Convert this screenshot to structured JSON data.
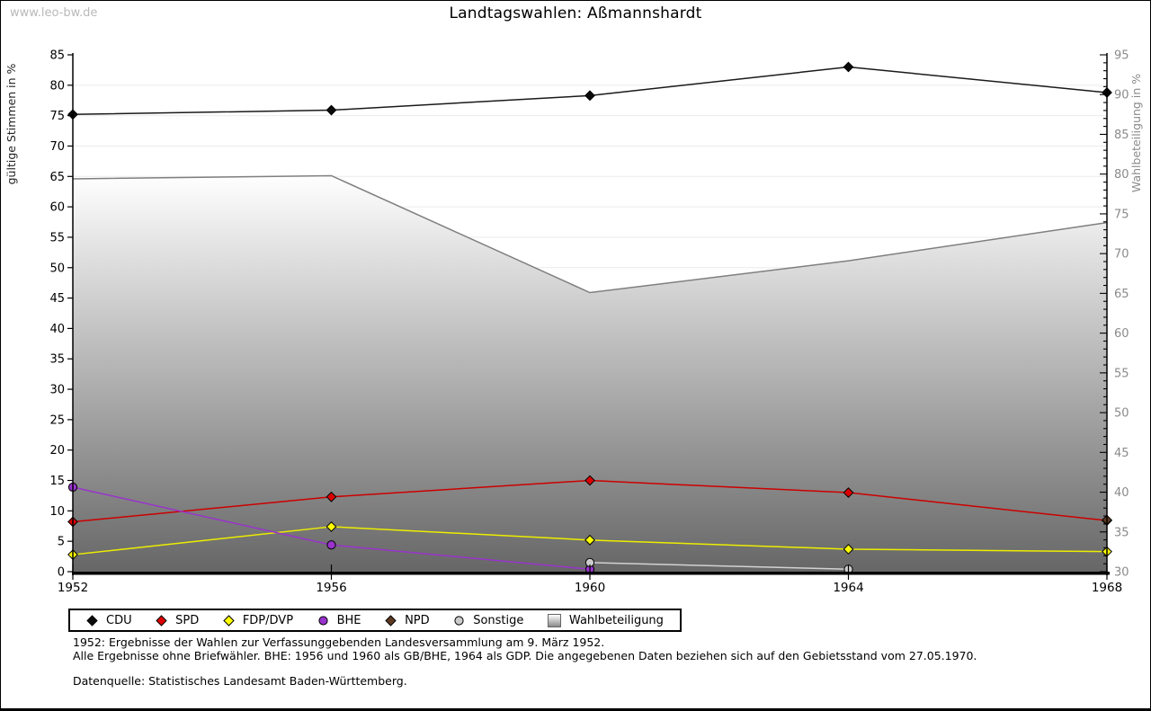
{
  "watermark": "www.leo-bw.de",
  "title": "Landtagswahlen: Aßmannshardt",
  "axes": {
    "left_label": "gültige Stimmen in %",
    "right_label": "Wahlbeteiligung in %",
    "left_min": 0,
    "left_max": 85,
    "left_step": 5,
    "right_min": 30,
    "right_max": 95,
    "right_step": 5,
    "x_ticks": [
      "1952",
      "1956",
      "1960",
      "1964",
      "1968"
    ]
  },
  "chart_data": {
    "type": "line",
    "x": [
      1952,
      1956,
      1960,
      1964,
      1968
    ],
    "title": "Landtagswahlen: Aßmannshardt",
    "xlabel": "",
    "ylabel_left": "gültige Stimmen in %",
    "ylabel_right": "Wahlbeteiligung in %",
    "ylim_left": [
      0,
      85
    ],
    "ylim_right": [
      30,
      95
    ],
    "grid": true,
    "legend_position": "bottom",
    "series": [
      {
        "name": "Wahlbeteiligung",
        "type": "area",
        "axis": "right",
        "color": "#7f7f7f",
        "fill_top": "#ffffff",
        "fill_bottom": "#666666",
        "values": [
          79.4,
          79.8,
          65.1,
          69.1,
          73.9
        ]
      },
      {
        "name": "CDU",
        "type": "line",
        "axis": "left",
        "color": "#1a1a1a",
        "marker": "diamond",
        "marker_fill": "#0a0a0a",
        "values": [
          75.2,
          75.9,
          78.3,
          83.0,
          78.8
        ]
      },
      {
        "name": "SPD",
        "type": "line",
        "axis": "left",
        "color": "#cc0000",
        "marker": "diamond",
        "marker_fill": "#dd0000",
        "values": [
          8.2,
          12.3,
          15.0,
          13.0,
          8.4
        ]
      },
      {
        "name": "FDP/DVP",
        "type": "line",
        "axis": "left",
        "color": "#eded00",
        "marker": "diamond",
        "marker_fill": "#ffff00",
        "values": [
          2.8,
          7.4,
          5.2,
          3.7,
          3.3
        ]
      },
      {
        "name": "BHE",
        "type": "line",
        "axis": "left",
        "color": "#9933cc",
        "marker": "circle",
        "marker_fill": "#9933cc",
        "values": [
          13.9,
          4.4,
          0.4,
          null,
          null
        ]
      },
      {
        "name": "NPD",
        "type": "line",
        "axis": "left",
        "color": "#5e3a22",
        "marker": "diamond",
        "marker_fill": "#5e3a22",
        "values": [
          null,
          null,
          null,
          null,
          8.5
        ]
      },
      {
        "name": "Sonstige",
        "type": "line",
        "axis": "left",
        "color": "#d2d2d2",
        "marker": "circle",
        "marker_fill": "#cccccc",
        "values": [
          null,
          null,
          1.5,
          0.4,
          null
        ]
      }
    ]
  },
  "legend": [
    {
      "label": "CDU",
      "glyph": "diamond",
      "color": "#0a0a0a"
    },
    {
      "label": "SPD",
      "glyph": "diamond",
      "color": "#dd0000"
    },
    {
      "label": "FDP/DVP",
      "glyph": "diamond",
      "color": "#ffff00"
    },
    {
      "label": "BHE",
      "glyph": "circle",
      "color": "#9933cc"
    },
    {
      "label": "NPD",
      "glyph": "diamond",
      "color": "#5e3a22"
    },
    {
      "label": "Sonstige",
      "glyph": "circle",
      "color": "#cccccc"
    },
    {
      "label": "Wahlbeteiligung",
      "glyph": "area-square",
      "color": "#8a8a8a"
    }
  ],
  "footnotes": [
    "1952: Ergebnisse der Wahlen zur Verfassunggebenden Landesversammlung am 9. März 1952.",
    "Alle Ergebnisse ohne Briefwähler. BHE: 1956 und 1960 als GB/BHE, 1964 als GDP. Die angegebenen Daten beziehen sich auf den Gebietsstand vom 27.05.1970.",
    "Datenquelle: Statistisches Landesamt Baden-Württemberg."
  ]
}
